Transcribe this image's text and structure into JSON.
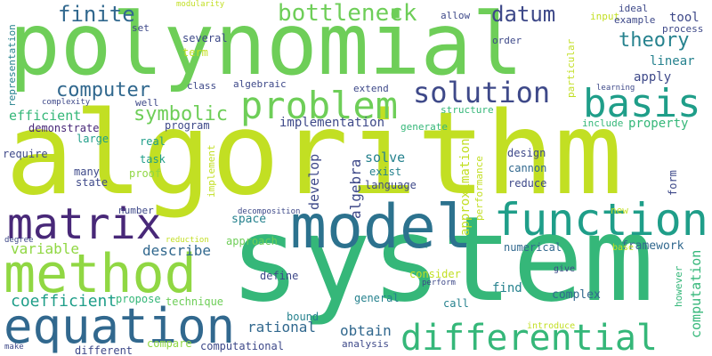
{
  "words": [
    {
      "text": "polynomial",
      "color": "#6ece58"
    },
    {
      "text": "algorithm",
      "color": "#c2df23"
    },
    {
      "text": "system",
      "color": "#35b779"
    },
    {
      "text": "model",
      "color": "#2c728e"
    },
    {
      "text": "function",
      "color": "#1f9e89"
    },
    {
      "text": "method",
      "color": "#90d743"
    },
    {
      "text": "equation",
      "color": "#31688e"
    },
    {
      "text": "differential",
      "color": "#35b779"
    },
    {
      "text": "matrix",
      "color": "#482878"
    },
    {
      "text": "problem",
      "color": "#6ece58"
    },
    {
      "text": "solution",
      "color": "#3e4989"
    },
    {
      "text": "basis",
      "color": "#1f9e89"
    },
    {
      "text": "bottleneck",
      "color": "#6ece58"
    },
    {
      "text": "finite",
      "color": "#31688e"
    },
    {
      "text": "datum",
      "color": "#3e4989"
    },
    {
      "text": "theory",
      "color": "#26828e"
    },
    {
      "text": "computer",
      "color": "#31688e"
    },
    {
      "text": "symbolic",
      "color": "#6ece58"
    },
    {
      "text": "coefficient",
      "color": "#1f9e89"
    },
    {
      "text": "variable",
      "color": "#90d743"
    },
    {
      "text": "describe",
      "color": "#31688e"
    },
    {
      "text": "rational",
      "color": "#31688e"
    },
    {
      "text": "obtain",
      "color": "#31688e"
    },
    {
      "text": "efficient",
      "color": "#35b779"
    },
    {
      "text": "solve",
      "color": "#26828e"
    },
    {
      "text": "linear",
      "color": "#26828e"
    },
    {
      "text": "apply",
      "color": "#3e4989"
    },
    {
      "text": "tool",
      "color": "#3e4989"
    },
    {
      "text": "implementation",
      "color": "#3e4989"
    },
    {
      "text": "property",
      "color": "#35b779"
    },
    {
      "text": "computation",
      "color": "#35b779"
    },
    {
      "text": "approximation",
      "color": "#c2df23"
    },
    {
      "text": "algebra",
      "color": "#3e4989"
    },
    {
      "text": "develop",
      "color": "#3e4989"
    },
    {
      "text": "space",
      "color": "#26828e"
    },
    {
      "text": "find",
      "color": "#26828e"
    },
    {
      "text": "framework",
      "color": "#31688e"
    },
    {
      "text": "complex",
      "color": "#31688e"
    },
    {
      "text": "demonstrate",
      "color": "#482878"
    },
    {
      "text": "large",
      "color": "#1f9e89"
    },
    {
      "text": "require",
      "color": "#3e4989"
    },
    {
      "text": "many",
      "color": "#3e4989"
    },
    {
      "text": "state",
      "color": "#3e4989"
    },
    {
      "text": "proof",
      "color": "#90d743"
    },
    {
      "text": "number",
      "color": "#3e4989"
    },
    {
      "text": "define",
      "color": "#3e4989"
    },
    {
      "text": "approach",
      "color": "#6ece58"
    },
    {
      "text": "technique",
      "color": "#6ece58"
    },
    {
      "text": "propose",
      "color": "#35b779"
    },
    {
      "text": "compare",
      "color": "#90d743"
    },
    {
      "text": "different",
      "color": "#3e4989"
    },
    {
      "text": "computational",
      "color": "#3e4989"
    },
    {
      "text": "analysis",
      "color": "#3e4989"
    },
    {
      "text": "general",
      "color": "#26828e"
    },
    {
      "text": "call",
      "color": "#26828e"
    },
    {
      "text": "bound",
      "color": "#26828e"
    },
    {
      "text": "consider",
      "color": "#c2df23"
    },
    {
      "text": "perform",
      "color": "#3e4989"
    },
    {
      "text": "give",
      "color": "#3e4989"
    },
    {
      "text": "introduce",
      "color": "#c2df23"
    },
    {
      "text": "however",
      "color": "#35b779"
    },
    {
      "text": "base",
      "color": "#c2df23"
    },
    {
      "text": "new",
      "color": "#c2df23"
    },
    {
      "text": "numerical",
      "color": "#31688e"
    },
    {
      "text": "design",
      "color": "#3e4989"
    },
    {
      "text": "cannon",
      "color": "#31688e"
    },
    {
      "text": "reduce",
      "color": "#3e4989"
    },
    {
      "text": "exist",
      "color": "#26828e"
    },
    {
      "text": "language",
      "color": "#3e4989"
    },
    {
      "text": "generate",
      "color": "#35b779"
    },
    {
      "text": "structure",
      "color": "#35b779"
    },
    {
      "text": "include",
      "color": "#35b779"
    },
    {
      "text": "several",
      "color": "#3e4989"
    },
    {
      "text": "term",
      "color": "#c2df23"
    },
    {
      "text": "class",
      "color": "#3e4989"
    },
    {
      "text": "algebraic",
      "color": "#3e4989"
    },
    {
      "text": "extend",
      "color": "#3e4989"
    },
    {
      "text": "well",
      "color": "#3e4989"
    },
    {
      "text": "program",
      "color": "#3e4989"
    },
    {
      "text": "real",
      "color": "#1f9e89"
    },
    {
      "text": "task",
      "color": "#1f9e89"
    },
    {
      "text": "implement",
      "color": "#c2df23"
    },
    {
      "text": "decomposition",
      "color": "#3e4989"
    },
    {
      "text": "reduction",
      "color": "#c2df23"
    },
    {
      "text": "degree",
      "color": "#3e4989"
    },
    {
      "text": "performance",
      "color": "#c2df23"
    },
    {
      "text": "form",
      "color": "#3e4989"
    },
    {
      "text": "allow",
      "color": "#3e4989"
    },
    {
      "text": "input",
      "color": "#c2df23"
    },
    {
      "text": "ideal",
      "color": "#3e4989"
    },
    {
      "text": "example",
      "color": "#3e4989"
    },
    {
      "text": "process",
      "color": "#3e4989"
    },
    {
      "text": "order",
      "color": "#3e4989"
    },
    {
      "text": "particular",
      "color": "#c2df23"
    },
    {
      "text": "learning",
      "color": "#3e4989"
    },
    {
      "text": "set",
      "color": "#3e4989"
    },
    {
      "text": "modularity",
      "color": "#c2df23"
    },
    {
      "text": "complexity",
      "color": "#3e4989"
    },
    {
      "text": "representation",
      "color": "#26828e"
    },
    {
      "text": "make",
      "color": "#3e4989"
    }
  ]
}
